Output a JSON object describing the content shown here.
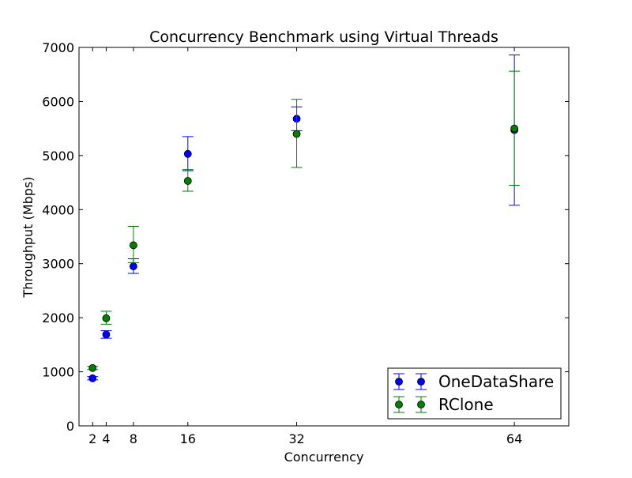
{
  "chart_data": {
    "type": "scatter",
    "title": "Concurrency Benchmark using Virtual Threads",
    "xlabel": "Concurrency",
    "ylabel": "Throughput (Mbps)",
    "xlim": [
      0,
      72
    ],
    "ylim": [
      0,
      7000
    ],
    "xticks": [
      2,
      4,
      8,
      16,
      32,
      64
    ],
    "yticks": [
      0,
      1000,
      2000,
      3000,
      4000,
      5000,
      6000,
      7000
    ],
    "grid": false,
    "legend": "bottom-right",
    "series": [
      {
        "name": "OneDataShare",
        "color": "#0000ff",
        "x": [
          2,
          4,
          8,
          16,
          32,
          64
        ],
        "y": [
          880,
          1690,
          2950,
          5030,
          5680,
          5470
        ],
        "yerr_low": [
          850,
          1620,
          2820,
          4720,
          5460,
          4080
        ],
        "yerr_high": [
          910,
          1760,
          3090,
          5350,
          5900,
          6860
        ]
      },
      {
        "name": "RClone",
        "color": "#008000",
        "x": [
          2,
          4,
          8,
          16,
          32,
          64
        ],
        "y": [
          1070,
          1990,
          3340,
          4530,
          5400,
          5500
        ],
        "yerr_low": [
          1040,
          1880,
          3020,
          4340,
          4780,
          4450
        ],
        "yerr_high": [
          1100,
          2120,
          3690,
          4740,
          6040,
          6560
        ]
      }
    ]
  }
}
